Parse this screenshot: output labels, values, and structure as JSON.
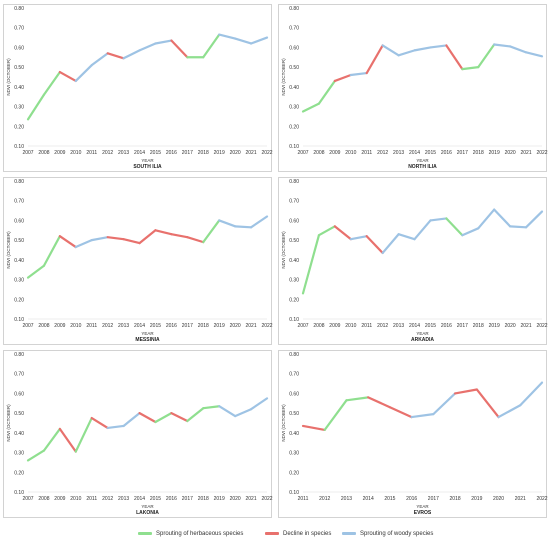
{
  "chart_data": [
    {
      "type": "line",
      "title": "SOUTH ILIA",
      "xlabel": "YEAR",
      "ylabel": "NDVI (OCTOBER)",
      "ylim": [
        0.1,
        0.8
      ],
      "yticks": [
        "0.10",
        "0.20",
        "0.30",
        "0.40",
        "0.50",
        "0.60",
        "0.70",
        "0.80"
      ],
      "x": [
        "2007",
        "2008",
        "2009",
        "2010",
        "2011",
        "2012",
        "2013",
        "2014",
        "2015",
        "2016",
        "2017",
        "2018",
        "2019",
        "2020",
        "2021",
        "2022"
      ],
      "values": [
        0.235,
        0.36,
        0.475,
        0.43,
        0.51,
        0.57,
        0.545,
        0.585,
        0.62,
        0.635,
        0.55,
        0.55,
        0.665,
        0.645,
        0.62,
        0.65
      ]
    },
    {
      "type": "line",
      "title": "NORTH ILIA",
      "xlabel": "YEAR",
      "ylabel": "NDVI (OCTOBER)",
      "ylim": [
        0.1,
        0.8
      ],
      "yticks": [
        "0.10",
        "0.20",
        "0.30",
        "0.40",
        "0.50",
        "0.60",
        "0.70",
        "0.80"
      ],
      "x": [
        "2007",
        "2008",
        "2009",
        "2010",
        "2011",
        "2012",
        "2013",
        "2014",
        "2015",
        "2016",
        "2017",
        "2018",
        "2019",
        "2020",
        "2021",
        "2022"
      ],
      "values": [
        0.275,
        0.315,
        0.43,
        0.46,
        0.47,
        0.61,
        0.56,
        0.585,
        0.6,
        0.61,
        0.49,
        0.5,
        0.615,
        0.605,
        0.575,
        0.555
      ]
    },
    {
      "type": "line",
      "title": "MESSINIA",
      "xlabel": "YEAR",
      "ylabel": "NDVI (OCTOBER)",
      "ylim": [
        0.1,
        0.8
      ],
      "yticks": [
        "0.10",
        "0.20",
        "0.30",
        "0.40",
        "0.50",
        "0.60",
        "0.70",
        "0.80"
      ],
      "x": [
        "2007",
        "2008",
        "2009",
        "2010",
        "2011",
        "2012",
        "2013",
        "2014",
        "2015",
        "2016",
        "2017",
        "2018",
        "2019",
        "2020",
        "2021",
        "2022"
      ],
      "values": [
        0.31,
        0.37,
        0.52,
        0.465,
        0.5,
        0.515,
        0.505,
        0.485,
        0.55,
        0.53,
        0.515,
        0.49,
        0.6,
        0.57,
        0.565,
        0.62
      ]
    },
    {
      "type": "line",
      "title": "ARKADIA",
      "xlabel": "YEAR",
      "ylabel": "NDVI (OCTOBER)",
      "ylim": [
        0.1,
        0.8
      ],
      "yticks": [
        "0.10",
        "0.20",
        "0.30",
        "0.40",
        "0.50",
        "0.60",
        "0.70",
        "0.80"
      ],
      "x": [
        "2007",
        "2008",
        "2009",
        "2010",
        "2011",
        "2012",
        "2013",
        "2014",
        "2015",
        "2016",
        "2017",
        "2018",
        "2019",
        "2020",
        "2021",
        "2022"
      ],
      "values": [
        0.23,
        0.525,
        0.57,
        0.505,
        0.52,
        0.435,
        0.53,
        0.505,
        0.6,
        0.61,
        0.525,
        0.56,
        0.655,
        0.57,
        0.565,
        0.645
      ]
    },
    {
      "type": "line",
      "title": "LAKONIA",
      "xlabel": "YEAR",
      "ylabel": "NDVI (OCTOBER)",
      "ylim": [
        0.1,
        0.8
      ],
      "yticks": [
        "0.10",
        "0.20",
        "0.30",
        "0.40",
        "0.50",
        "0.60",
        "0.70",
        "0.80"
      ],
      "x": [
        "2007",
        "2008",
        "2009",
        "2010",
        "2011",
        "2012",
        "2013",
        "2014",
        "2015",
        "2016",
        "2017",
        "2018",
        "2019",
        "2020",
        "2021",
        "2022"
      ],
      "values": [
        0.26,
        0.31,
        0.42,
        0.305,
        0.475,
        0.425,
        0.435,
        0.5,
        0.455,
        0.5,
        0.46,
        0.525,
        0.535,
        0.485,
        0.52,
        0.575
      ]
    },
    {
      "type": "line",
      "title": "EVROS",
      "xlabel": "YEAR",
      "ylabel": "NDVI (OCTOBER)",
      "ylim": [
        0.1,
        0.8
      ],
      "yticks": [
        "0.10",
        "0.20",
        "0.30",
        "0.40",
        "0.50",
        "0.60",
        "0.70",
        "0.80"
      ],
      "x": [
        "2011",
        "2012",
        "2013",
        "2014",
        "2015",
        "2016",
        "2017",
        "2018",
        "2019",
        "2020",
        "2021",
        "2022"
      ],
      "values": [
        0.435,
        0.415,
        0.565,
        0.58,
        0.53,
        0.48,
        0.495,
        0.6,
        0.62,
        0.48,
        0.54,
        0.655
      ]
    }
  ],
  "legend": [
    {
      "label": "Sprouting of herbaceous species",
      "color": "#8fdf8f"
    },
    {
      "label": "Decline in species",
      "color": "#e8716d"
    },
    {
      "label": "Sprouting of woody species",
      "color": "#9ec3e4"
    }
  ],
  "colors": {
    "herbaceous": "#8fdf8f",
    "decline": "#e8716d",
    "woody": "#9ec3e4",
    "panel_border": "#c8c8c8",
    "tick_text": "#333333"
  }
}
